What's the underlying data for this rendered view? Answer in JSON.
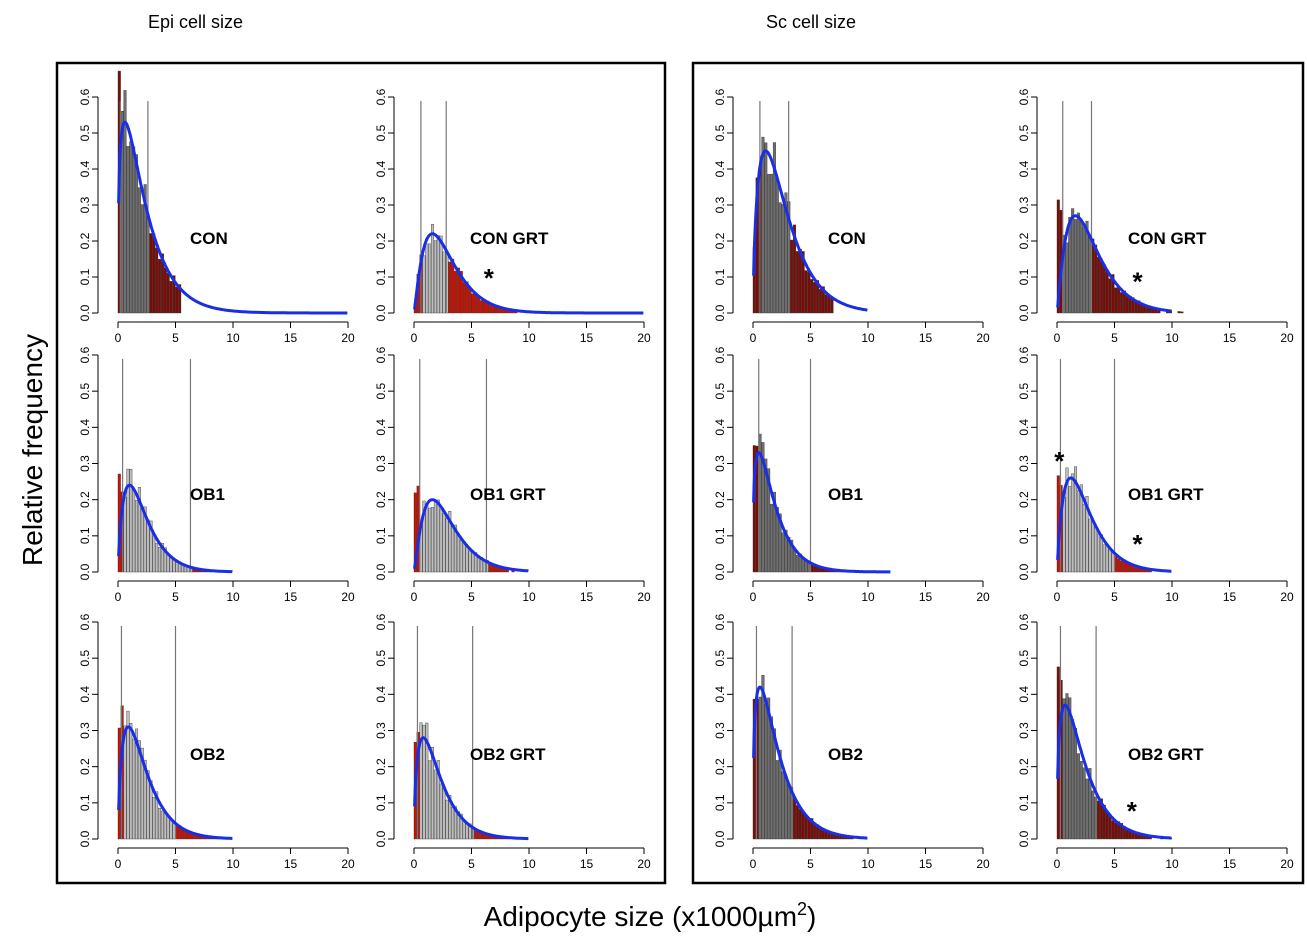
{
  "figure": {
    "panel_titles": [
      "Epi cell size",
      "Sc cell size"
    ],
    "y_axis_label": "Relative frequency",
    "x_axis_label": "Adipocyte size (x1000µm",
    "x_axis_label_sup": "2",
    "x_axis_label_end": ")"
  },
  "chart_data": [
    {
      "type": "bar",
      "panel": "Epi cell size",
      "label": "CON",
      "xlim": [
        0,
        20
      ],
      "ylim": [
        0,
        0.6
      ],
      "xticks": [
        0,
        5,
        10,
        15,
        20
      ],
      "yticks": [
        "0.0",
        "0.1",
        "0.2",
        "0.3",
        "0.4",
        "0.5",
        "0.6"
      ],
      "vlines": [
        0.2,
        2.6
      ],
      "peak": 0.53,
      "mode": 0.6,
      "shape": 1.7,
      "hist_max": 5.5,
      "curve_max": 20,
      "asterisks": []
    },
    {
      "type": "bar",
      "panel": "Epi cell size",
      "label": "CON GRT",
      "xlim": [
        0,
        20
      ],
      "ylim": [
        0,
        0.6
      ],
      "xticks": [
        0,
        5,
        10,
        15,
        20
      ],
      "yticks": [
        "0.0",
        "0.1",
        "0.2",
        "0.3",
        "0.4",
        "0.5",
        "0.6"
      ],
      "vlines": [
        0.6,
        2.8
      ],
      "peak": 0.22,
      "mode": 1.6,
      "shape": 1.3,
      "hist_max": 13,
      "curve_max": 20,
      "asterisks": [
        [
          6.5,
          0.1
        ]
      ]
    },
    {
      "type": "bar",
      "panel": "Sc cell size",
      "label": "CON",
      "xlim": [
        0,
        20
      ],
      "ylim": [
        0,
        0.6
      ],
      "xticks": [
        0,
        5,
        10,
        15,
        20
      ],
      "yticks": [
        "0.0",
        "0.1",
        "0.2",
        "0.3",
        "0.4",
        "0.5",
        "0.6"
      ],
      "vlines": [
        0.6,
        3.1
      ],
      "peak": 0.45,
      "mode": 1.1,
      "shape": 1.6,
      "hist_max": 7,
      "curve_max": 10,
      "asterisks": []
    },
    {
      "type": "bar",
      "panel": "Sc cell size",
      "label": "CON GRT",
      "xlim": [
        0,
        20
      ],
      "ylim": [
        0,
        0.6
      ],
      "xticks": [
        0,
        5,
        10,
        15,
        20
      ],
      "yticks": [
        "0.0",
        "0.1",
        "0.2",
        "0.3",
        "0.4",
        "0.5",
        "0.6"
      ],
      "vlines": [
        0.5,
        3.0
      ],
      "peak": 0.27,
      "mode": 1.6,
      "shape": 1.4,
      "hist_max": 16,
      "curve_max": 10,
      "asterisks": [
        [
          7,
          0.09
        ]
      ]
    },
    {
      "type": "bar",
      "panel": "Epi cell size",
      "label": "OB1",
      "xlim": [
        0,
        20
      ],
      "ylim": [
        0,
        0.6
      ],
      "xticks": [
        0,
        5,
        10,
        15,
        20
      ],
      "yticks": [
        "0.0",
        "0.1",
        "0.2",
        "0.3",
        "0.4",
        "0.5",
        "0.6"
      ],
      "vlines": [
        0.4,
        6.3
      ],
      "peak": 0.24,
      "mode": 1.0,
      "shape": 1.2,
      "hist_max": 20,
      "curve_max": 10,
      "asterisks": []
    },
    {
      "type": "bar",
      "panel": "Epi cell size",
      "label": "OB1 GRT",
      "xlim": [
        0,
        20
      ],
      "ylim": [
        0,
        0.6
      ],
      "xticks": [
        0,
        5,
        10,
        15,
        20
      ],
      "yticks": [
        "0.0",
        "0.1",
        "0.2",
        "0.3",
        "0.4",
        "0.5",
        "0.6"
      ],
      "vlines": [
        0.5,
        6.3
      ],
      "peak": 0.2,
      "mode": 1.6,
      "shape": 1.3,
      "hist_max": 20,
      "curve_max": 10,
      "asterisks": []
    },
    {
      "type": "bar",
      "panel": "Sc cell size",
      "label": "OB1",
      "xlim": [
        0,
        20
      ],
      "ylim": [
        0,
        0.6
      ],
      "xticks": [
        0,
        5,
        10,
        15,
        20
      ],
      "yticks": [
        "0.0",
        "0.1",
        "0.2",
        "0.3",
        "0.4",
        "0.5",
        "0.6"
      ],
      "vlines": [
        0.5,
        5.0
      ],
      "peak": 0.33,
      "mode": 0.5,
      "shape": 1.3,
      "hist_max": 12,
      "curve_max": 12,
      "asterisks": []
    },
    {
      "type": "bar",
      "panel": "Sc cell size",
      "label": "OB1 GRT",
      "xlim": [
        0,
        20
      ],
      "ylim": [
        0,
        0.6
      ],
      "xticks": [
        0,
        5,
        10,
        15,
        20
      ],
      "yticks": [
        "0.0",
        "0.1",
        "0.2",
        "0.3",
        "0.4",
        "0.5",
        "0.6"
      ],
      "vlines": [
        0.3,
        5.0
      ],
      "peak": 0.26,
      "mode": 1.2,
      "shape": 1.3,
      "hist_max": 16,
      "curve_max": 10,
      "asterisks": [
        [
          0.2,
          0.31
        ],
        [
          7,
          0.08
        ]
      ]
    },
    {
      "type": "bar",
      "panel": "Epi cell size",
      "label": "OB2",
      "xlim": [
        0,
        20
      ],
      "ylim": [
        0,
        0.6
      ],
      "xticks": [
        0,
        5,
        10,
        15,
        20
      ],
      "yticks": [
        "0.0",
        "0.1",
        "0.2",
        "0.3",
        "0.4",
        "0.5",
        "0.6"
      ],
      "vlines": [
        0.3,
        5.0
      ],
      "peak": 0.31,
      "mode": 0.9,
      "shape": 1.3,
      "hist_max": 16,
      "curve_max": 10,
      "asterisks": []
    },
    {
      "type": "bar",
      "panel": "Epi cell size",
      "label": "OB2 GRT",
      "xlim": [
        0,
        20
      ],
      "ylim": [
        0,
        0.6
      ],
      "xticks": [
        0,
        5,
        10,
        15,
        20
      ],
      "yticks": [
        "0.0",
        "0.1",
        "0.2",
        "0.3",
        "0.4",
        "0.5",
        "0.6"
      ],
      "vlines": [
        0.3,
        5.1
      ],
      "peak": 0.28,
      "mode": 0.8,
      "shape": 1.3,
      "hist_max": 15,
      "curve_max": 10,
      "asterisks": []
    },
    {
      "type": "bar",
      "panel": "Sc cell size",
      "label": "OB2",
      "xlim": [
        0,
        20
      ],
      "ylim": [
        0,
        0.6
      ],
      "xticks": [
        0,
        5,
        10,
        15,
        20
      ],
      "yticks": [
        "0.0",
        "0.1",
        "0.2",
        "0.3",
        "0.4",
        "0.5",
        "0.6"
      ],
      "vlines": [
        0.3,
        3.4
      ],
      "peak": 0.42,
      "mode": 0.6,
      "shape": 1.5,
      "hist_max": 14,
      "curve_max": 10,
      "asterisks": []
    },
    {
      "type": "bar",
      "panel": "Sc cell size",
      "label": "OB2 GRT",
      "xlim": [
        0,
        20
      ],
      "ylim": [
        0,
        0.6
      ],
      "xticks": [
        0,
        5,
        10,
        15,
        20
      ],
      "yticks": [
        "0.0",
        "0.1",
        "0.2",
        "0.3",
        "0.4",
        "0.5",
        "0.6"
      ],
      "vlines": [
        0.3,
        3.4
      ],
      "peak": 0.37,
      "mode": 0.7,
      "shape": 1.5,
      "hist_max": 10,
      "curve_max": 10,
      "asterisks": [
        [
          6.5,
          0.08
        ]
      ]
    }
  ],
  "colors": {
    "curve": "#1a2ee6",
    "bar_mid": "#bdbdbd",
    "bar_mid_dark": "#6e6e6e",
    "bar_tail": "#cc1100",
    "bar_tail_dark": "#7a0c05",
    "frame": "#000000",
    "vline": "#777777"
  }
}
